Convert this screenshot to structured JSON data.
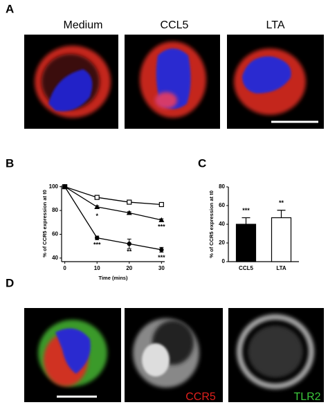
{
  "panel_labels": [
    "A",
    "B",
    "C",
    "D"
  ],
  "panel_a": {
    "captions": [
      "Medium",
      "CCL5",
      "LTA"
    ]
  },
  "panel_d": {
    "captions": [
      "CCR5",
      "TLR2"
    ]
  },
  "chart_data": [
    {
      "type": "line",
      "xlabel": "Time (mins)",
      "ylabel": "% of CCR5 expression at t0",
      "x": [
        0,
        10,
        20,
        30
      ],
      "xlim": [
        -1,
        31
      ],
      "xticks": [
        0,
        10,
        20,
        30
      ],
      "ylim": [
        37,
        101
      ],
      "yticks": [
        40,
        60,
        80,
        100
      ],
      "series": [
        {
          "color": "#000000",
          "marker": "square-open",
          "values": [
            100,
            91,
            87,
            85
          ],
          "errors": [
            null,
            1,
            1,
            1
          ]
        },
        {
          "color": "#000000",
          "marker": "triangle",
          "values": [
            100,
            83,
            78,
            72
          ],
          "errors": [
            null,
            1,
            1,
            1
          ]
        },
        {
          "color": "#000000",
          "marker": "circle",
          "values": [
            100,
            57,
            52,
            47
          ],
          "errors": [
            null,
            1.5,
            4,
            2
          ]
        }
      ],
      "annotations": [
        "*",
        "***",
        "***",
        "**",
        "***"
      ]
    },
    {
      "type": "bar",
      "ylabel": "% of CCR5 expression at t0",
      "categories": [
        "CCL5",
        "LTA"
      ],
      "values": [
        40,
        47
      ],
      "errors": [
        7,
        8
      ],
      "colors": [
        "#000000",
        "#ffffff"
      ],
      "ylim": [
        0,
        80
      ],
      "yticks": [
        0,
        20,
        40,
        60,
        80
      ],
      "annotations": [
        "***",
        "**"
      ]
    }
  ]
}
